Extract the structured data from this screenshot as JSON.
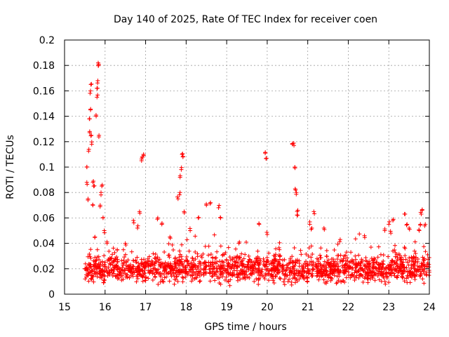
{
  "chart_data": {
    "type": "scatter",
    "title": "Day 140 of 2025, Rate Of TEC Index for receiver coen",
    "xlabel": "GPS time / hours",
    "ylabel": "ROTI / TECUs",
    "xlim": [
      15,
      24
    ],
    "ylim": [
      0,
      0.2
    ],
    "xticks": [
      15,
      16,
      17,
      18,
      19,
      20,
      21,
      22,
      23,
      24
    ],
    "yticks": [
      0,
      0.02,
      0.04,
      0.06,
      0.08,
      0.1,
      0.12,
      0.14,
      0.16,
      0.18,
      0.2
    ],
    "xtick_labels": [
      "15",
      "16",
      "17",
      "18",
      "19",
      "20",
      "21",
      "22",
      "23",
      "24"
    ],
    "ytick_labels": [
      "0",
      "0.02",
      "0.04",
      "0.06",
      "0.08",
      "0.1",
      "0.12",
      "0.14",
      "0.16",
      "0.18",
      "0.2"
    ],
    "grid": true,
    "marker": "+",
    "color": "#ff0000",
    "series": [
      {
        "name": "ROTI",
        "baseline_band": {
          "x_range": [
            15.5,
            24.0
          ],
          "y_range": [
            0.005,
            0.035
          ]
        },
        "points": [
          [
            15.55,
            0.1
          ],
          [
            15.55,
            0.088
          ],
          [
            15.58,
            0.075
          ],
          [
            15.6,
            0.114
          ],
          [
            15.62,
            0.128
          ],
          [
            15.62,
            0.138
          ],
          [
            15.64,
            0.145
          ],
          [
            15.64,
            0.16
          ],
          [
            15.65,
            0.165
          ],
          [
            15.66,
            0.125
          ],
          [
            15.67,
            0.118
          ],
          [
            15.7,
            0.07
          ],
          [
            15.7,
            0.088
          ],
          [
            15.72,
            0.085
          ],
          [
            15.75,
            0.045
          ],
          [
            15.78,
            0.14
          ],
          [
            15.8,
            0.155
          ],
          [
            15.8,
            0.162
          ],
          [
            15.82,
            0.168
          ],
          [
            15.83,
            0.182
          ],
          [
            15.84,
            0.18
          ],
          [
            15.85,
            0.125
          ],
          [
            15.88,
            0.07
          ],
          [
            15.9,
            0.08
          ],
          [
            15.92,
            0.085
          ],
          [
            15.95,
            0.06
          ],
          [
            15.98,
            0.05
          ],
          [
            16.05,
            0.04
          ],
          [
            16.3,
            0.035
          ],
          [
            16.5,
            0.04
          ],
          [
            16.7,
            0.058
          ],
          [
            16.8,
            0.052
          ],
          [
            16.85,
            0.065
          ],
          [
            16.9,
            0.105
          ],
          [
            16.92,
            0.108
          ],
          [
            16.95,
            0.11
          ],
          [
            17.3,
            0.06
          ],
          [
            17.4,
            0.055
          ],
          [
            17.6,
            0.045
          ],
          [
            17.8,
            0.075
          ],
          [
            17.85,
            0.08
          ],
          [
            17.85,
            0.092
          ],
          [
            17.88,
            0.098
          ],
          [
            17.9,
            0.11
          ],
          [
            17.92,
            0.108
          ],
          [
            17.95,
            0.065
          ],
          [
            18.1,
            0.05
          ],
          [
            18.3,
            0.06
          ],
          [
            18.5,
            0.07
          ],
          [
            18.6,
            0.072
          ],
          [
            18.8,
            0.068
          ],
          [
            18.85,
            0.06
          ],
          [
            19.3,
            0.04
          ],
          [
            19.8,
            0.055
          ],
          [
            19.95,
            0.111
          ],
          [
            19.98,
            0.107
          ],
          [
            20.0,
            0.047
          ],
          [
            20.3,
            0.035
          ],
          [
            20.62,
            0.118
          ],
          [
            20.66,
            0.117
          ],
          [
            20.68,
            0.1
          ],
          [
            20.7,
            0.082
          ],
          [
            20.72,
            0.08
          ],
          [
            20.74,
            0.065
          ],
          [
            20.75,
            0.062
          ],
          [
            21.05,
            0.055
          ],
          [
            21.1,
            0.052
          ],
          [
            21.15,
            0.065
          ],
          [
            21.4,
            0.052
          ],
          [
            21.8,
            0.043
          ],
          [
            22.4,
            0.046
          ],
          [
            22.9,
            0.05
          ],
          [
            23.0,
            0.055
          ],
          [
            23.05,
            0.048
          ],
          [
            23.1,
            0.058
          ],
          [
            23.4,
            0.063
          ],
          [
            23.45,
            0.055
          ],
          [
            23.5,
            0.052
          ],
          [
            23.4,
            0.036
          ],
          [
            23.75,
            0.05
          ],
          [
            23.78,
            0.055
          ],
          [
            23.8,
            0.063
          ],
          [
            23.82,
            0.066
          ],
          [
            23.9,
            0.055
          ]
        ]
      }
    ]
  }
}
